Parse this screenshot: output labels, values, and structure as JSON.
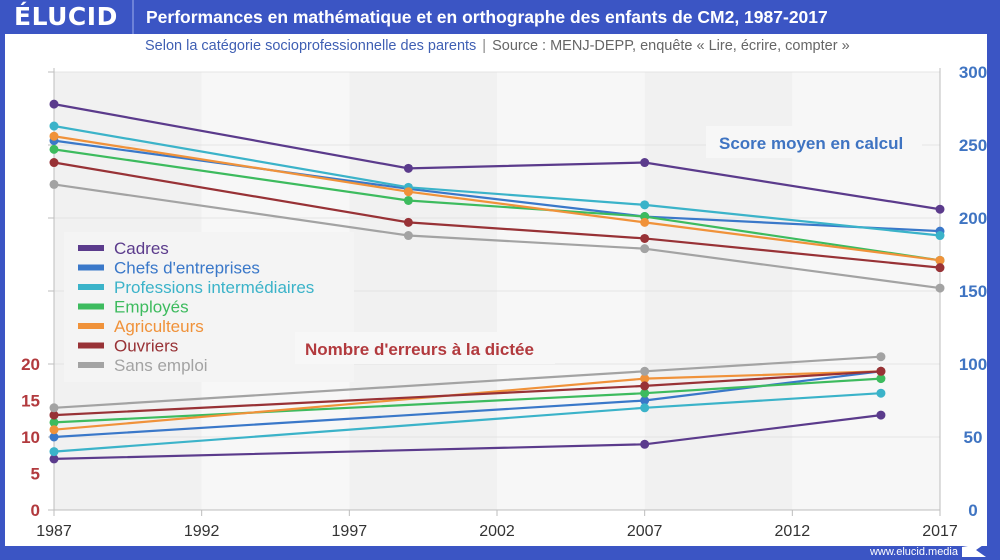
{
  "header": {
    "logo": "ÉLUCID",
    "title": "Performances en mathématique et en orthographe des enfants de CM2, 1987-2017"
  },
  "subtitle": {
    "main": "Selon la catégorie socioprofessionnelle des parents",
    "separator": "|",
    "source": "Source : MENJ-DEPP, enquête « Lire, écrire, compter »"
  },
  "footer": {
    "url": "www.elucid.media"
  },
  "colors": {
    "header_bg": "#3b55c4",
    "left_axis": "#b23a3e",
    "right_axis": "#3f74c2"
  },
  "chart_data": {
    "type": "line",
    "title": "Performances en mathématique et en orthographe des enfants de CM2, 1987-2017",
    "x_ticks": [
      "1987",
      "1992",
      "1997",
      "2002",
      "2007",
      "2012",
      "2017"
    ],
    "xlim": [
      1987,
      2017
    ],
    "left_axis": {
      "label": "Nombre d'erreurs à la dictée",
      "ticks": [
        "0",
        "5",
        "10",
        "15",
        "20"
      ],
      "ylim": [
        0,
        60
      ]
    },
    "right_axis": {
      "label": "Score moyen en calcul",
      "ticks": [
        "0",
        "50",
        "100",
        "150",
        "200",
        "250",
        "300"
      ],
      "ylim": [
        0,
        300
      ]
    },
    "annotations": {
      "calcul": "Score moyen en calcul",
      "dictee": "Nombre d'erreurs à la dictée"
    },
    "grid": true,
    "legend_position": "middle-left",
    "series": [
      {
        "name": "Cadres",
        "color": "#5b3b8c",
        "calcul": {
          "x": [
            1987,
            1999,
            2007,
            2017
          ],
          "y": [
            278,
            234,
            238,
            206
          ]
        },
        "dictee": {
          "x": [
            1987,
            2007,
            2015
          ],
          "y": [
            7,
            9,
            13
          ]
        }
      },
      {
        "name": "Chefs d'entreprises",
        "color": "#3a78c9",
        "calcul": {
          "x": [
            1987,
            1999,
            2007,
            2017
          ],
          "y": [
            253,
            220,
            201,
            191
          ]
        },
        "dictee": {
          "x": [
            1987,
            2007,
            2015
          ],
          "y": [
            10,
            15,
            19
          ]
        }
      },
      {
        "name": "Professions intermédiaires",
        "color": "#3bb3c9",
        "calcul": {
          "x": [
            1987,
            1999,
            2007,
            2017
          ],
          "y": [
            263,
            221,
            209,
            188
          ]
        },
        "dictee": {
          "x": [
            1987,
            2007,
            2015
          ],
          "y": [
            8,
            14,
            16
          ]
        }
      },
      {
        "name": "Employés",
        "color": "#3dbb5e",
        "calcul": {
          "x": [
            1987,
            1999,
            2007,
            2017
          ],
          "y": [
            247,
            212,
            201,
            171
          ]
        },
        "dictee": {
          "x": [
            1987,
            2007,
            2015
          ],
          "y": [
            12,
            16,
            18
          ]
        }
      },
      {
        "name": "Agriculteurs",
        "color": "#f0923a",
        "calcul": {
          "x": [
            1987,
            1999,
            2007,
            2017
          ],
          "y": [
            256,
            218,
            197,
            171
          ]
        },
        "dictee": {
          "x": [
            1987,
            2007,
            2015
          ],
          "y": [
            11,
            18,
            19
          ]
        }
      },
      {
        "name": "Ouvriers",
        "color": "#983236",
        "calcul": {
          "x": [
            1987,
            1999,
            2007,
            2017
          ],
          "y": [
            238,
            197,
            186,
            166
          ]
        },
        "dictee": {
          "x": [
            1987,
            2007,
            2015
          ],
          "y": [
            13,
            17,
            19
          ]
        }
      },
      {
        "name": "Sans emploi",
        "color": "#a3a3a3",
        "calcul": {
          "x": [
            1987,
            1999,
            2007,
            2017
          ],
          "y": [
            223,
            188,
            179,
            152
          ]
        },
        "dictee": {
          "x": [
            1987,
            2007,
            2015
          ],
          "y": [
            14,
            19,
            21
          ]
        }
      }
    ]
  }
}
